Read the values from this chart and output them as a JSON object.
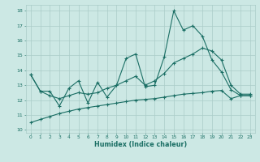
{
  "xlabel": "Humidex (Indice chaleur)",
  "bg_color": "#cce8e4",
  "grid_color": "#aaccc8",
  "line_color": "#1a6e64",
  "xlim": [
    -0.5,
    23.5
  ],
  "ylim": [
    9.8,
    18.4
  ],
  "xticks": [
    0,
    1,
    2,
    3,
    4,
    5,
    6,
    7,
    8,
    9,
    10,
    11,
    12,
    13,
    14,
    15,
    16,
    17,
    18,
    19,
    20,
    21,
    22,
    23
  ],
  "yticks": [
    10,
    11,
    12,
    13,
    14,
    15,
    16,
    17,
    18
  ],
  "line1_y": [
    13.7,
    12.6,
    12.6,
    11.6,
    12.8,
    13.3,
    11.8,
    13.2,
    12.2,
    13.0,
    14.8,
    15.1,
    12.9,
    13.0,
    14.9,
    18.0,
    16.7,
    17.0,
    16.3,
    14.7,
    13.9,
    12.7,
    12.3,
    12.3
  ],
  "line2_y": [
    13.7,
    12.6,
    12.3,
    12.1,
    12.3,
    12.5,
    12.4,
    12.5,
    12.8,
    13.0,
    13.3,
    13.6,
    13.0,
    13.3,
    13.8,
    14.5,
    14.8,
    15.1,
    15.5,
    15.3,
    14.7,
    13.0,
    12.4,
    12.4
  ],
  "line3_y": [
    10.5,
    10.7,
    10.9,
    11.1,
    11.25,
    11.4,
    11.5,
    11.6,
    11.7,
    11.8,
    11.9,
    12.0,
    12.05,
    12.1,
    12.2,
    12.3,
    12.4,
    12.45,
    12.5,
    12.6,
    12.65,
    12.1,
    12.3,
    12.3
  ]
}
